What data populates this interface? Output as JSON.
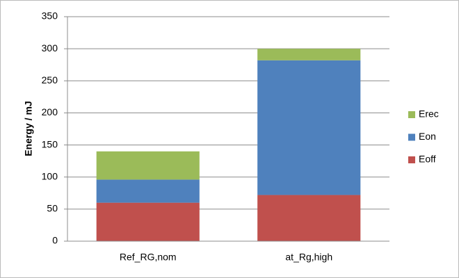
{
  "chart_data": {
    "type": "stacked_bar",
    "y_label": "Energy / mJ",
    "categories": [
      "Ref_RG,nom",
      "at_Rg,high"
    ],
    "series": [
      {
        "name": "Eoff",
        "color": "#c0504d",
        "values": [
          60,
          72
        ]
      },
      {
        "name": "Eon",
        "color": "#4f81bd",
        "values": [
          36,
          210
        ]
      },
      {
        "name": "Erec",
        "color": "#9bbb59",
        "values": [
          44,
          18
        ]
      }
    ],
    "ylim": [
      0,
      350
    ],
    "yticks": [
      0,
      50,
      100,
      150,
      200,
      250,
      300,
      350
    ],
    "grid": true,
    "legend": "right"
  }
}
